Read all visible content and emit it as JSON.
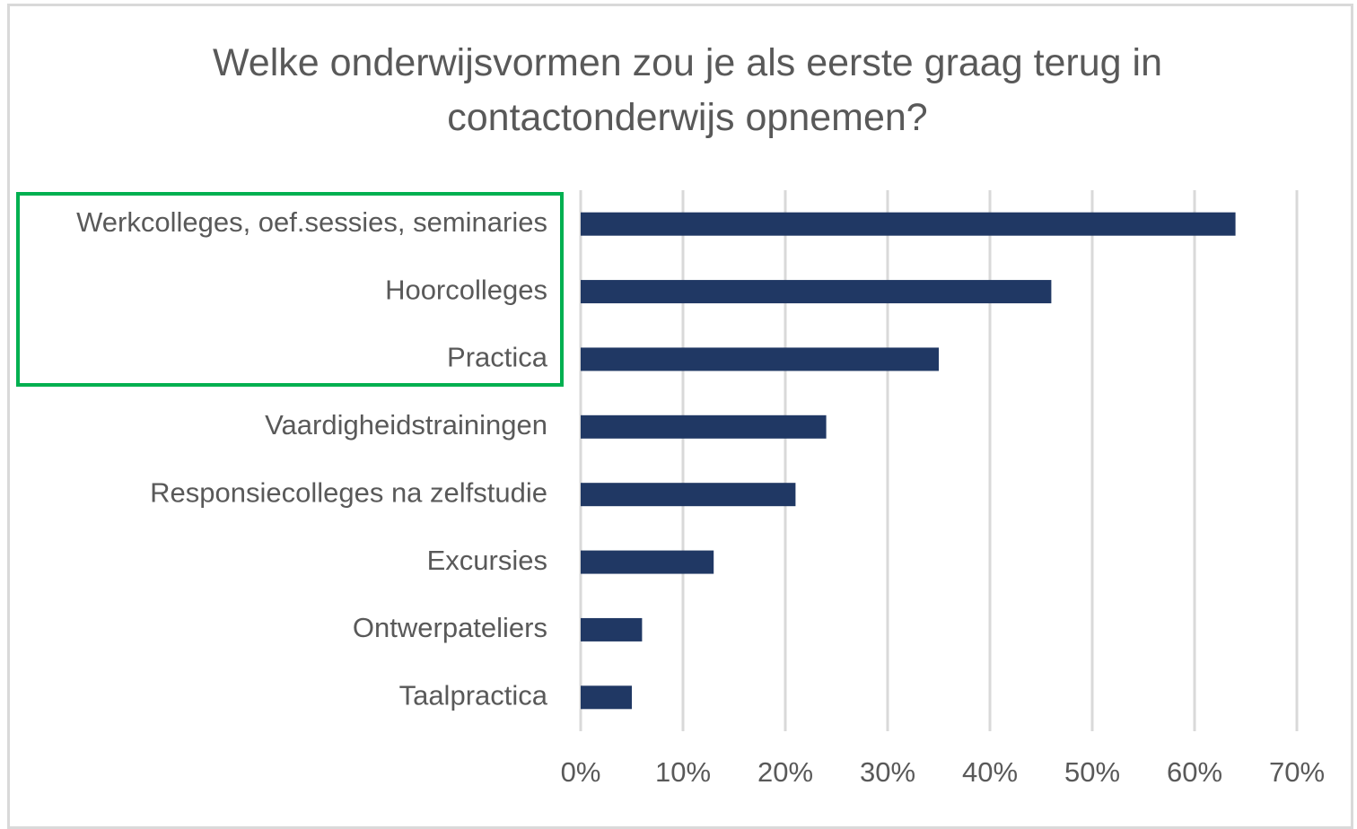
{
  "chart_data": {
    "type": "bar",
    "orientation": "horizontal",
    "title": "Welke onderwijsvormen zou je als eerste graag terug in contactonderwijs opnemen?",
    "categories": [
      "Werkcolleges, oef.sessies, seminaries",
      "Hoorcolleges",
      "Practica",
      "Vaardigheidstrainingen",
      "Responsiecolleges na zelfstudie",
      "Excursies",
      "Ontwerpateliers",
      "Taalpractica"
    ],
    "values": [
      64,
      46,
      35,
      24,
      21,
      13,
      6,
      5
    ],
    "color": "#203864",
    "xlim": [
      0,
      70
    ],
    "xticks": [
      {
        "value": 0,
        "label": "0%"
      },
      {
        "value": 10,
        "label": "10%"
      },
      {
        "value": 20,
        "label": "20%"
      },
      {
        "value": 30,
        "label": "30%"
      },
      {
        "value": 40,
        "label": "40%"
      },
      {
        "value": 50,
        "label": "50%"
      },
      {
        "value": 60,
        "label": "60%"
      },
      {
        "value": 70,
        "label": "70%"
      }
    ],
    "grid": true
  }
}
